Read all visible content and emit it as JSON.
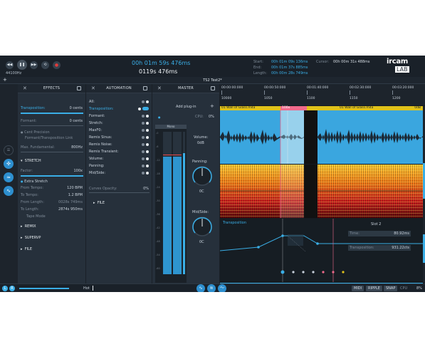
{
  "transport": {
    "sample_rate": "44100Hz",
    "time_main": "00h 01m 59s 476ms",
    "time_secondary": "0119s 476ms",
    "start_label": "Start:",
    "start_value": "00h 01m 09s 136ms",
    "end_label": "End:",
    "end_value": "00h 01m 37s 885ms",
    "length_label": "Length:",
    "length_value": "00h 00m 28s 749ms",
    "cursor_label": "Cursor:",
    "cursor_value": "00h 00m 31s 488ms",
    "logo_top": "ircam",
    "logo_bottom": "LAB",
    "buttons": [
      "rewind-icon",
      "pause-icon",
      "forward-icon",
      "loop-icon",
      "record-icon"
    ]
  },
  "tab": {
    "title": "TS2 Test2*",
    "add": "+"
  },
  "effects": {
    "title": "EFFECTS",
    "transposition_label": "Transposition:",
    "transposition_value": "0 cents",
    "formant_label": "Formant:",
    "formant_value": "0 cents",
    "cent_precision": "Cent Precision",
    "formant_link": "Formant/Transposition Link",
    "max_fund_label": "Max. Fundamental:",
    "max_fund_value": "800Hz",
    "stretch_title": "STRETCH",
    "factor_label": "Factor:",
    "factor_value": "100x",
    "extra_stretch": "Extra Stretch",
    "from_tempo_label": "From Tempo:",
    "from_tempo_value": "120 BPM",
    "to_tempo_label": "To Tempo:",
    "to_tempo_value": "1.2 BPM",
    "from_length_label": "From Length:",
    "from_length_value": "0028s 749ms",
    "to_length_label": "To Length:",
    "to_length_value": "2874s 950ms",
    "tape_mode": "Tape Mode",
    "remix": "REMIX",
    "superv": "SUPERVP",
    "file": "FILE"
  },
  "automation": {
    "title": "AUTOMATION",
    "items": [
      "All:",
      "Transposition:",
      "Formant:",
      "Stretch:",
      "MaxF0:",
      "Remix Sinus:",
      "Remix Noise:",
      "Remix Transient:",
      "Volume:",
      "Panning:",
      "Mid/Side:"
    ],
    "curves_label": "Curves Opacity:",
    "curves_value": "0%",
    "file": "FILE"
  },
  "master": {
    "title": "MASTER",
    "add_plugin": "Add plug-in",
    "add": "+",
    "cpu_label": "CPU:",
    "cpu_value": "0%",
    "meter_label": "Mono",
    "volume_label": "Volume:",
    "volume_value": "0dB",
    "panning_label": "Panning:",
    "panning_value": "0C",
    "midside_label": "Mid/Side:",
    "midside_value": "0C",
    "db_ticks": [
      "-0",
      "-6",
      "-12",
      "-18",
      "-24",
      "-30",
      "-36",
      "-42",
      "-48",
      "-54",
      "-60"
    ]
  },
  "editor": {
    "timecodes": [
      "00:00:00:000",
      "00:00:50:000",
      "00:01:40:000",
      "00:02:30:000",
      "00:03:20:000"
    ],
    "ruler_numbers": [
      "10000",
      "1050",
      "1100",
      "1150",
      "1200"
    ],
    "clip1_name": "01 Wall of Glass.m4a",
    "clip2_name": "01 Wall of Glass.m4a",
    "clip_end": "0dB",
    "sel_label": "100x",
    "transposition_lane": "Transposition",
    "slot_label": "Slot 2",
    "time_label": "Time:",
    "time_value": "80.92ms",
    "transp_label": "Transposition:",
    "transp_value": "931.22cts",
    "colors": {
      "accent": "#3aaee6",
      "clip_header": "#e0c21a",
      "selection": "#f06a8c"
    }
  },
  "bottom": {
    "l_label": "L",
    "r_label": "R",
    "hot_label": "Hot",
    "midi": "MIDI",
    "ripple": "RIPPLE",
    "snap": "SNAP",
    "cpu_label": "CPU",
    "cpu_value": "8%"
  }
}
